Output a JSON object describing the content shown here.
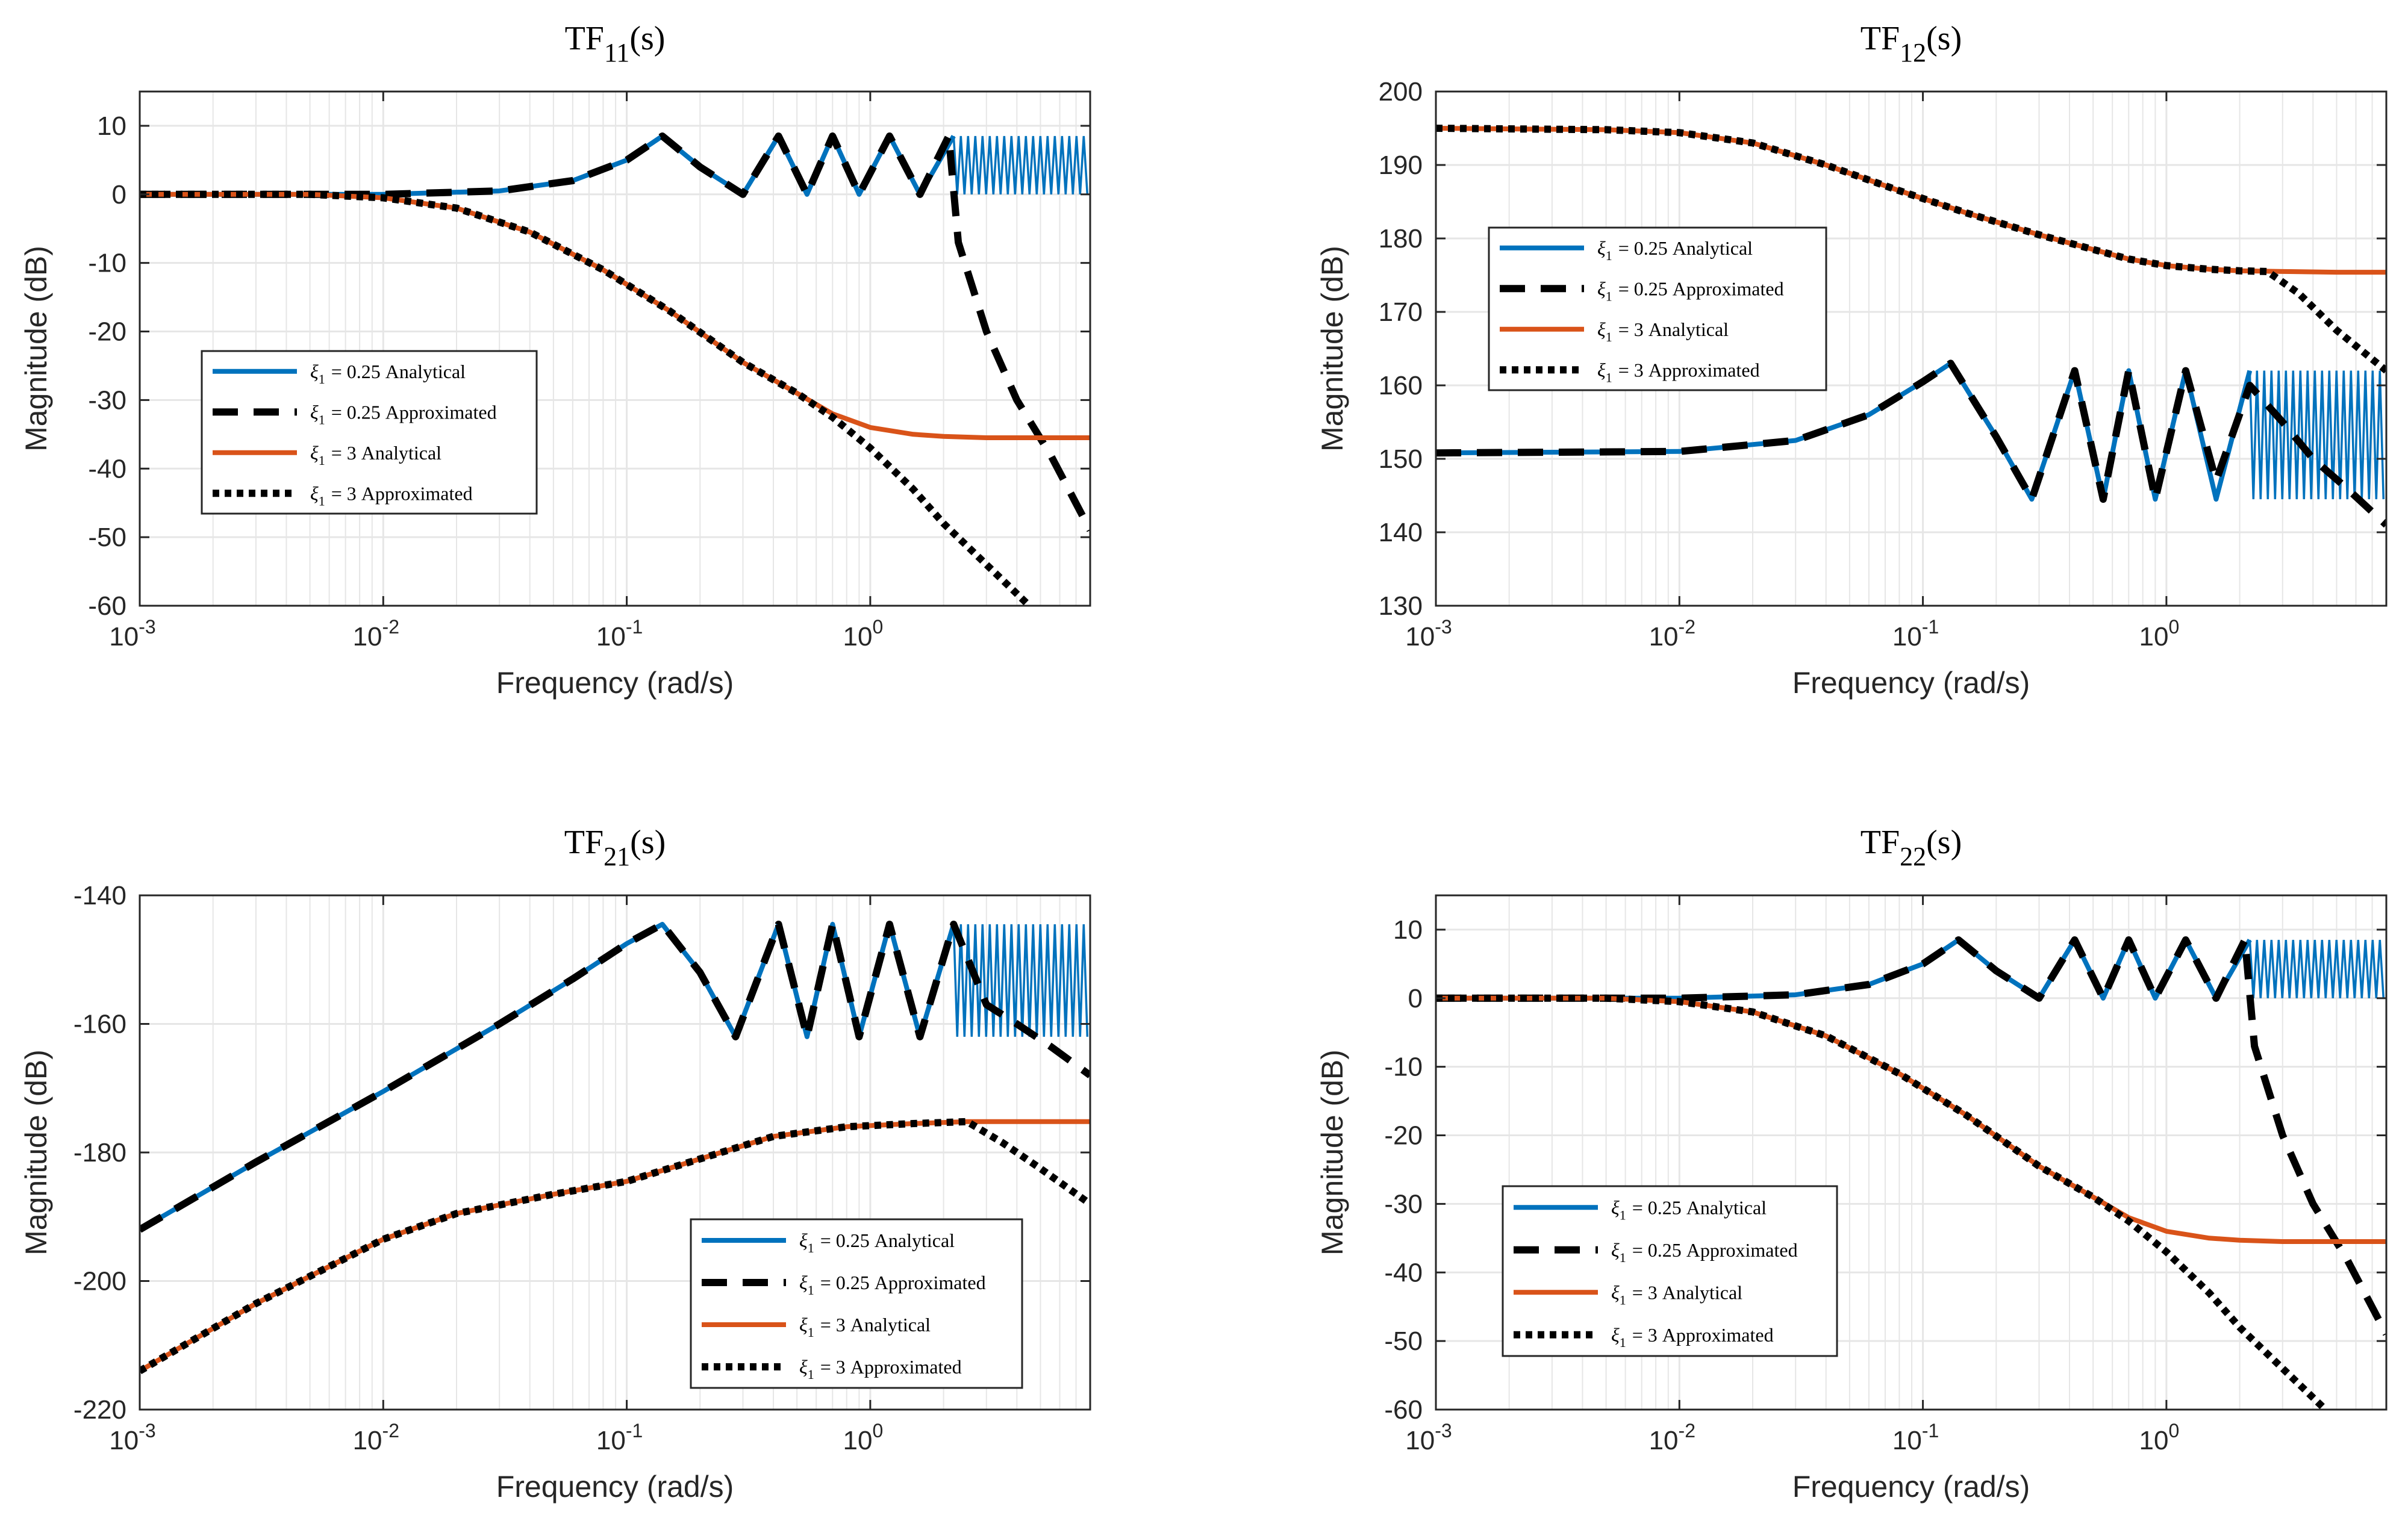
{
  "colors": {
    "analytical_025": "#0072BD",
    "approx_025": "#000000",
    "analytical_3": "#D95319",
    "approx_3": "#000000",
    "grid": "#e6e6e6",
    "axes": "#262626"
  },
  "chart_data": [
    {
      "type": "line",
      "title_main": "TF",
      "title_sub": "11",
      "title_tail": "(s)",
      "xlabel": "Frequency  (rad/s)",
      "ylabel": "Magnitude (dB)",
      "xscale": "log",
      "xlim": [
        0.001,
        8
      ],
      "ylim": [
        -60,
        15
      ],
      "yticks": [
        10,
        0,
        -10,
        -20,
        -30,
        -40,
        -50,
        -60
      ],
      "yticklabels": [
        "10",
        "0",
        "-10",
        "-20",
        "-30",
        "-40",
        "-50",
        "-60"
      ],
      "xticks": [
        0.001,
        0.01,
        0.1,
        1
      ],
      "xtick_bases": [
        "10",
        "10",
        "10",
        "10"
      ],
      "xtick_exps": [
        "-3",
        "-2",
        "-1",
        "0"
      ],
      "legend_location": "middle-left",
      "legend": [
        {
          "symbol": "ξ",
          "sub": "1",
          "text": "= 0.25 Analytical"
        },
        {
          "symbol": "ξ",
          "sub": "1",
          "text": "= 0.25 Approximated"
        },
        {
          "symbol": "ξ",
          "sub": "1",
          "text": "= 3 Analytical"
        },
        {
          "symbol": "ξ",
          "sub": "1",
          "text": "= 3 Approximated"
        }
      ],
      "series": [
        {
          "name": "ξ1 = 0.25 Analytical",
          "style": "solid",
          "color": "#0072BD",
          "x": [
            0.001,
            0.01,
            0.03,
            0.06,
            0.1,
            0.14,
            0.2,
            0.3,
            0.42,
            0.55,
            0.7,
            0.9,
            1.2,
            1.6,
            2.2,
            3,
            4,
            5.5,
            8
          ],
          "y": [
            0,
            0,
            0.5,
            2,
            5,
            8.5,
            4,
            0,
            8.5,
            0,
            8.5,
            0,
            8.5,
            0,
            8.5,
            0,
            8.5,
            0,
            8.5
          ],
          "oscillation": {
            "from": 2.2,
            "to": 8,
            "low": 0,
            "high": 8.5
          }
        },
        {
          "name": "ξ1 = 0.25 Approximated",
          "style": "dashed",
          "color": "#000000",
          "x": [
            0.001,
            0.01,
            0.03,
            0.06,
            0.1,
            0.14,
            0.2,
            0.3,
            0.42,
            0.55,
            0.7,
            0.9,
            1.2,
            1.6,
            2.1,
            2.3,
            3,
            4,
            5.5,
            8
          ],
          "y": [
            0,
            0,
            0.5,
            2,
            5,
            8.5,
            4,
            0,
            8.5,
            0,
            8.5,
            0,
            8.5,
            0,
            8.5,
            -7,
            -20,
            -30,
            -38,
            -49
          ]
        },
        {
          "name": "ξ1 = 3 Analytical",
          "style": "solid",
          "color": "#D95319",
          "x": [
            0.001,
            0.005,
            0.01,
            0.02,
            0.04,
            0.08,
            0.15,
            0.3,
            0.5,
            0.7,
            1,
            1.5,
            2,
            3,
            5,
            8
          ],
          "y": [
            0,
            0,
            -0.5,
            -2,
            -5.5,
            -11,
            -17,
            -24.5,
            -29,
            -32,
            -34,
            -35,
            -35.3,
            -35.5,
            -35.5,
            -35.5
          ]
        },
        {
          "name": "ξ1 = 3 Approximated",
          "style": "dotted",
          "color": "#000000",
          "x": [
            0.001,
            0.005,
            0.01,
            0.02,
            0.04,
            0.08,
            0.15,
            0.3,
            0.5,
            0.7,
            1,
            1.5,
            2,
            3,
            4.5
          ],
          "y": [
            0,
            0,
            -0.5,
            -2,
            -5.5,
            -11,
            -17,
            -24.5,
            -29,
            -32.5,
            -37,
            -43,
            -48,
            -54,
            -60
          ]
        }
      ]
    },
    {
      "type": "line",
      "title_main": "TF",
      "title_sub": "12",
      "title_tail": "(s)",
      "xlabel": "Frequency  (rad/s)",
      "ylabel": "Magnitude (dB)",
      "xscale": "log",
      "xlim": [
        0.001,
        8
      ],
      "ylim": [
        130,
        200
      ],
      "yticks": [
        200,
        190,
        180,
        170,
        160,
        150,
        140,
        130
      ],
      "yticklabels": [
        "200",
        "190",
        "180",
        "170",
        "160",
        "150",
        "140",
        "130"
      ],
      "xticks": [
        0.001,
        0.01,
        0.1,
        1
      ],
      "xtick_bases": [
        "10",
        "10",
        "10",
        "10"
      ],
      "xtick_exps": [
        "-3",
        "-2",
        "-1",
        "0"
      ],
      "legend_location": "middle-left",
      "legend": [
        {
          "symbol": "ξ",
          "sub": "1",
          "text": "= 0.25 Analytical"
        },
        {
          "symbol": "ξ",
          "sub": "1",
          "text": "= 0.25 Approximated"
        },
        {
          "symbol": "ξ",
          "sub": "1",
          "text": "= 3 Analytical"
        },
        {
          "symbol": "ξ",
          "sub": "1",
          "text": "= 3 Approximated"
        }
      ],
      "series": [
        {
          "name": "ξ1 = 0.25 Analytical",
          "style": "solid",
          "color": "#0072BD",
          "x": [
            0.001,
            0.01,
            0.03,
            0.06,
            0.1,
            0.13,
            0.2,
            0.28,
            0.42,
            0.55,
            0.7,
            0.9,
            1.2,
            1.6,
            2.2,
            3,
            4,
            5.5,
            8
          ],
          "y": [
            150.8,
            151,
            152.5,
            156,
            160.5,
            163,
            153,
            144.5,
            162,
            144.5,
            162,
            144.5,
            162,
            144.5,
            162,
            144.5,
            162,
            144.5,
            162
          ],
          "oscillation": {
            "from": 2.2,
            "to": 8,
            "low": 144.5,
            "high": 162
          }
        },
        {
          "name": "ξ1 = 0.25 Approximated",
          "style": "dashed",
          "color": "#000000",
          "x": [
            0.001,
            0.01,
            0.03,
            0.06,
            0.1,
            0.13,
            0.2,
            0.28,
            0.42,
            0.55,
            0.7,
            0.9,
            1.2,
            1.6,
            2.2,
            3,
            4,
            5.5,
            8
          ],
          "y": [
            150.8,
            151,
            152.5,
            156,
            160.5,
            163,
            153,
            144.5,
            162,
            144.5,
            162,
            144.5,
            162,
            147,
            160,
            155,
            150,
            146,
            141
          ]
        },
        {
          "name": "ξ1 = 3 Analytical",
          "style": "solid",
          "color": "#D95319",
          "x": [
            0.001,
            0.005,
            0.01,
            0.02,
            0.04,
            0.08,
            0.15,
            0.3,
            0.5,
            0.7,
            1,
            1.5,
            2,
            3,
            5,
            8
          ],
          "y": [
            195,
            194.8,
            194.4,
            193,
            190,
            186.5,
            183.5,
            180.5,
            178.5,
            177.2,
            176.3,
            175.8,
            175.6,
            175.5,
            175.4,
            175.4
          ]
        },
        {
          "name": "ξ1 = 3 Approximated",
          "style": "dotted",
          "color": "#000000",
          "x": [
            0.001,
            0.005,
            0.01,
            0.02,
            0.04,
            0.08,
            0.15,
            0.3,
            0.5,
            0.7,
            1,
            1.5,
            2,
            2.6,
            3.5,
            5,
            8
          ],
          "y": [
            195,
            194.8,
            194.4,
            193,
            190,
            186.5,
            183.5,
            180.5,
            178.5,
            177.2,
            176.3,
            175.8,
            175.6,
            175.5,
            172.5,
            167.5,
            162
          ]
        }
      ]
    },
    {
      "type": "line",
      "title_main": "TF",
      "title_sub": "21",
      "title_tail": "(s)",
      "xlabel": "Frequency  (rad/s)",
      "ylabel": "Magnitude (dB)",
      "xscale": "log",
      "xlim": [
        0.001,
        8
      ],
      "ylim": [
        -220,
        -140
      ],
      "yticks": [
        -140,
        -160,
        -180,
        -200,
        -220
      ],
      "yticklabels": [
        "-140",
        "-160",
        "-180",
        "-200",
        "-220"
      ],
      "xticks": [
        0.001,
        0.01,
        0.1,
        1
      ],
      "xtick_bases": [
        "10",
        "10",
        "10",
        "10"
      ],
      "xtick_exps": [
        "-3",
        "-2",
        "-1",
        "0"
      ],
      "legend_location": "bottom-right",
      "legend": [
        {
          "symbol": "ξ",
          "sub": "1",
          "text": "= 0.25 Analytical"
        },
        {
          "symbol": "ξ",
          "sub": "1",
          "text": "= 0.25 Approximated"
        },
        {
          "symbol": "ξ",
          "sub": "1",
          "text": "= 3 Analytical"
        },
        {
          "symbol": "ξ",
          "sub": "1",
          "text": "= 3 Approximated"
        }
      ],
      "series": [
        {
          "name": "ξ1 = 0.25 Analytical",
          "style": "solid",
          "color": "#0072BD",
          "x": [
            0.001,
            0.003,
            0.01,
            0.03,
            0.06,
            0.1,
            0.14,
            0.2,
            0.28,
            0.42,
            0.55,
            0.7,
            0.9,
            1.2,
            1.6,
            2.2,
            3,
            4,
            5.5,
            8
          ],
          "y": [
            -192,
            -181.5,
            -170.5,
            -160,
            -153,
            -147.5,
            -144.5,
            -152,
            -162,
            -144.5,
            -162,
            -144.5,
            -162,
            -144.5,
            -162,
            -144.5,
            -162,
            -144.5,
            -162,
            -144.5
          ],
          "oscillation": {
            "from": 2.2,
            "to": 8,
            "low": -162,
            "high": -144.5
          }
        },
        {
          "name": "ξ1 = 0.25 Approximated",
          "style": "dashed",
          "color": "#000000",
          "x": [
            0.001,
            0.003,
            0.01,
            0.03,
            0.06,
            0.1,
            0.14,
            0.2,
            0.28,
            0.42,
            0.55,
            0.7,
            0.9,
            1.2,
            1.6,
            2.2,
            3,
            4,
            5.5,
            8
          ],
          "y": [
            -192,
            -181.5,
            -170.5,
            -160,
            -153,
            -147.5,
            -144.5,
            -152,
            -162,
            -144.5,
            -162,
            -144.5,
            -162,
            -144.5,
            -162,
            -144.5,
            -157,
            -160,
            -163.5,
            -168
          ]
        },
        {
          "name": "ξ1 = 3 Analytical",
          "style": "solid",
          "color": "#D95319",
          "x": [
            0.001,
            0.003,
            0.01,
            0.02,
            0.05,
            0.1,
            0.2,
            0.4,
            0.8,
            1.5,
            2.5,
            4,
            8
          ],
          "y": [
            -214,
            -203.5,
            -193.5,
            -189.5,
            -186.5,
            -184.5,
            -181,
            -177.5,
            -176,
            -175.5,
            -175.2,
            -175.2,
            -175.2
          ]
        },
        {
          "name": "ξ1 = 3 Approximated",
          "style": "dotted",
          "color": "#000000",
          "x": [
            0.001,
            0.003,
            0.01,
            0.02,
            0.05,
            0.1,
            0.2,
            0.4,
            0.8,
            1.5,
            2.5,
            3.5,
            5,
            8
          ],
          "y": [
            -214,
            -203.5,
            -193.5,
            -189.5,
            -186.5,
            -184.5,
            -181,
            -177.5,
            -176,
            -175.5,
            -175.2,
            -178.5,
            -182.5,
            -188
          ]
        }
      ]
    },
    {
      "type": "line",
      "title_main": "TF",
      "title_sub": "22",
      "title_tail": "(s)",
      "xlabel": "Frequency  (rad/s)",
      "ylabel": "Magnitude (dB)",
      "xscale": "log",
      "xlim": [
        0.001,
        8
      ],
      "ylim": [
        -60,
        15
      ],
      "yticks": [
        10,
        0,
        -10,
        -20,
        -30,
        -40,
        -50,
        -60
      ],
      "yticklabels": [
        "10",
        "0",
        "-10",
        "-20",
        "-30",
        "-40",
        "-50",
        "-60"
      ],
      "xticks": [
        0.001,
        0.01,
        0.1,
        1
      ],
      "xtick_bases": [
        "10",
        "10",
        "10",
        "10"
      ],
      "xtick_exps": [
        "-3",
        "-2",
        "-1",
        "0"
      ],
      "legend_location": "bottom-left",
      "legend": [
        {
          "symbol": "ξ",
          "sub": "1",
          "text": "= 0.25 Analytical"
        },
        {
          "symbol": "ξ",
          "sub": "1",
          "text": "= 0.25 Approximated"
        },
        {
          "symbol": "ξ",
          "sub": "1",
          "text": "= 3 Analytical"
        },
        {
          "symbol": "ξ",
          "sub": "1",
          "text": "= 3 Approximated"
        }
      ],
      "series": [
        {
          "name": "ξ1 = 0.25 Analytical",
          "style": "solid",
          "color": "#0072BD",
          "x": [
            0.001,
            0.01,
            0.03,
            0.06,
            0.1,
            0.14,
            0.2,
            0.3,
            0.42,
            0.55,
            0.7,
            0.9,
            1.2,
            1.6,
            2.2,
            3,
            4,
            5.5,
            8
          ],
          "y": [
            0,
            0,
            0.5,
            2,
            5,
            8.5,
            4,
            0,
            8.5,
            0,
            8.5,
            0,
            8.5,
            0,
            8.5,
            0,
            8.5,
            0,
            8.5
          ],
          "oscillation": {
            "from": 2.2,
            "to": 8,
            "low": 0,
            "high": 8.5
          }
        },
        {
          "name": "ξ1 = 0.25 Approximated",
          "style": "dashed",
          "color": "#000000",
          "x": [
            0.001,
            0.01,
            0.03,
            0.06,
            0.1,
            0.14,
            0.2,
            0.3,
            0.42,
            0.55,
            0.7,
            0.9,
            1.2,
            1.6,
            2.1,
            2.3,
            3,
            4,
            5.5,
            8
          ],
          "y": [
            0,
            0,
            0.5,
            2,
            5,
            8.5,
            4,
            0,
            8.5,
            0,
            8.5,
            0,
            8.5,
            0,
            8.5,
            -7,
            -20,
            -30,
            -38,
            -49
          ]
        },
        {
          "name": "ξ1 = 3 Analytical",
          "style": "solid",
          "color": "#D95319",
          "x": [
            0.001,
            0.005,
            0.01,
            0.02,
            0.04,
            0.08,
            0.15,
            0.3,
            0.5,
            0.7,
            1,
            1.5,
            2,
            3,
            5,
            8
          ],
          "y": [
            0,
            0,
            -0.5,
            -2,
            -5.5,
            -11,
            -17,
            -24.5,
            -29,
            -32,
            -34,
            -35,
            -35.3,
            -35.5,
            -35.5,
            -35.5
          ]
        },
        {
          "name": "ξ1 = 3 Approximated",
          "style": "dotted",
          "color": "#000000",
          "x": [
            0.001,
            0.005,
            0.01,
            0.02,
            0.04,
            0.08,
            0.15,
            0.3,
            0.5,
            0.7,
            1,
            1.5,
            2,
            3,
            4.5
          ],
          "y": [
            0,
            0,
            -0.5,
            -2,
            -5.5,
            -11,
            -17,
            -24.5,
            -29,
            -32.5,
            -37,
            -43,
            -48,
            -54,
            -60
          ]
        }
      ]
    }
  ]
}
